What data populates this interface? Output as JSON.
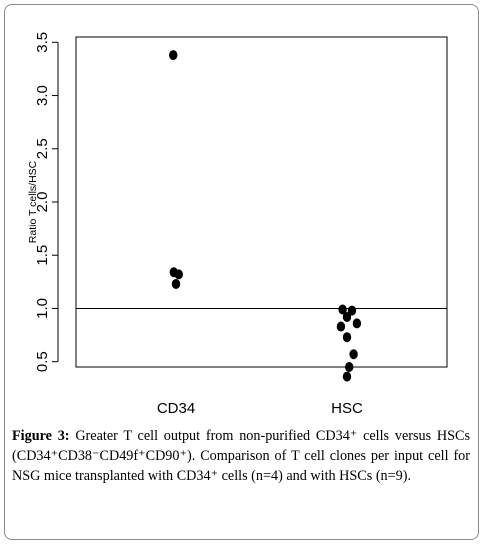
{
  "chart_data": {
    "type": "scatter",
    "title": "",
    "xlabel": "",
    "ylabel": "Ratio T cells/HSC",
    "categories": [
      "CD34",
      "HSC"
    ],
    "ylim": [
      0.45,
      3.55
    ],
    "yticks": [
      "0.5",
      "1.0",
      "1.5",
      "2.0",
      "2.5",
      "3.0",
      "3.5"
    ],
    "reference_line": 1.0,
    "grid": false,
    "points": [
      {
        "category": "CD34",
        "x_offset": -0.05,
        "y": 3.38
      },
      {
        "category": "CD34",
        "x_offset": -0.04,
        "y": 1.34
      },
      {
        "category": "CD34",
        "x_offset": 0.05,
        "y": 1.32
      },
      {
        "category": "CD34",
        "x_offset": 0.0,
        "y": 1.23
      },
      {
        "category": "HSC",
        "x_offset": -0.08,
        "y": 0.99
      },
      {
        "category": "HSC",
        "x_offset": 0.09,
        "y": 0.98
      },
      {
        "category": "HSC",
        "x_offset": 0.0,
        "y": 0.92
      },
      {
        "category": "HSC",
        "x_offset": -0.11,
        "y": 0.83
      },
      {
        "category": "HSC",
        "x_offset": 0.18,
        "y": 0.86
      },
      {
        "category": "HSC",
        "x_offset": 0.0,
        "y": 0.73
      },
      {
        "category": "HSC",
        "x_offset": 0.12,
        "y": 0.57
      },
      {
        "category": "HSC",
        "x_offset": 0.04,
        "y": 0.45
      },
      {
        "category": "HSC",
        "x_offset": 0.0,
        "y": 0.36
      }
    ],
    "point_color": "#000000"
  },
  "caption": {
    "label": "Figure 3:",
    "text": "Greater T cell output from non-purified CD34⁺ cells versus HSCs (CD34⁺CD38⁻CD49f⁺CD90⁺). Comparison of T cell clones per input cell for NSG mice transplanted with CD34⁺ cells (n=4) and with HSCs (n=9)."
  }
}
